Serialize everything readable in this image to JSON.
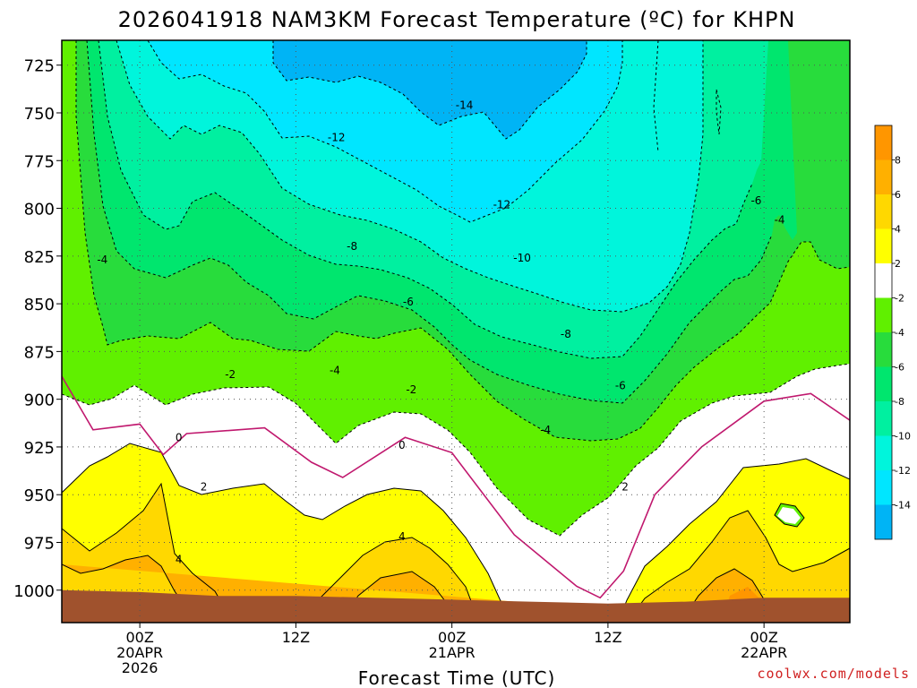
{
  "chart_data": {
    "type": "filled-contour",
    "title": "2026041918 NAM3KM Forecast Temperature (ºC) for KHPN",
    "xlabel": "Forecast Time (UTC)",
    "ylabel": "",
    "credit": "coolwx.com/models",
    "y_ticks": [
      "725",
      "750",
      "775",
      "800",
      "825",
      "850",
      "875",
      "900",
      "925",
      "950",
      "975",
      "1000"
    ],
    "ylim_hpa": [
      712,
      1017
    ],
    "xlim_hours": [
      -5,
      45.5
    ],
    "x_ticks": [
      {
        "hour": 0,
        "lines": [
          "00Z",
          "20APR",
          "2026"
        ]
      },
      {
        "hour": 10,
        "lines": [
          "12Z"
        ]
      },
      {
        "hour": 20,
        "lines": [
          "00Z",
          "21APR"
        ]
      },
      {
        "hour": 30,
        "lines": [
          "12Z"
        ]
      },
      {
        "hour": 40,
        "lines": [
          "00Z",
          "22APR"
        ]
      }
    ],
    "colorbar": [
      {
        "value": "8"
      },
      {
        "value": "6"
      },
      {
        "value": "4"
      },
      {
        "value": "2"
      },
      {
        "value": "-2"
      },
      {
        "value": "-4"
      },
      {
        "value": "-6"
      },
      {
        "value": "-8"
      },
      {
        "value": "-10"
      },
      {
        "value": "-12"
      },
      {
        "value": "-14"
      }
    ],
    "contour_labels": [
      {
        "text": "-14",
        "hour": 20.8,
        "hpa": 746
      },
      {
        "text": "-12",
        "hour": 12.6,
        "hpa": 763
      },
      {
        "text": "-12",
        "hour": 23.2,
        "hpa": 798
      },
      {
        "text": "-10",
        "hour": 24.5,
        "hpa": 826
      },
      {
        "text": "-8",
        "hour": 13.6,
        "hpa": 820
      },
      {
        "text": "-8",
        "hour": 27.3,
        "hpa": 866
      },
      {
        "text": "-6",
        "hour": 17.2,
        "hpa": 849
      },
      {
        "text": "-6",
        "hour": 30.8,
        "hpa": 893
      },
      {
        "text": "-6",
        "hour": 39.5,
        "hpa": 796
      },
      {
        "text": "-4",
        "hour": -2.4,
        "hpa": 827
      },
      {
        "text": "-4",
        "hour": 12.5,
        "hpa": 885
      },
      {
        "text": "-4",
        "hour": 26.0,
        "hpa": 916
      },
      {
        "text": "-4",
        "hour": 41.0,
        "hpa": 806
      },
      {
        "text": "-2",
        "hour": 5.8,
        "hpa": 887
      },
      {
        "text": "-2",
        "hour": 17.4,
        "hpa": 895
      },
      {
        "text": "0",
        "hour": 2.5,
        "hpa": 920
      },
      {
        "text": "0",
        "hour": 16.8,
        "hpa": 924
      },
      {
        "text": "2",
        "hour": 4.1,
        "hpa": 946
      },
      {
        "text": "2",
        "hour": 31.1,
        "hpa": 946
      },
      {
        "text": "4",
        "hour": 2.5,
        "hpa": 984
      },
      {
        "text": "4",
        "hour": 16.8,
        "hpa": 972
      }
    ],
    "temperature_bands_C": [
      "<-14",
      "-14..-12",
      "-12..-10",
      "-10..-8",
      "-8..-6",
      "-6..-4",
      "-4..-2",
      "-2..2",
      "2..4",
      "4..6",
      "6..8"
    ],
    "surface_pressure_hpa": [
      {
        "hour": -5,
        "hpa": 1000
      },
      {
        "hour": 0,
        "hpa": 1001
      },
      {
        "hour": 5,
        "hpa": 1003
      },
      {
        "hour": 10,
        "hpa": 1003
      },
      {
        "hour": 15,
        "hpa": 1004
      },
      {
        "hour": 20,
        "hpa": 1005
      },
      {
        "hour": 25,
        "hpa": 1006
      },
      {
        "hour": 30,
        "hpa": 1007
      },
      {
        "hour": 35,
        "hpa": 1006
      },
      {
        "hour": 40,
        "hpa": 1004
      },
      {
        "hour": 45.5,
        "hpa": 1004
      }
    ],
    "freezing_level_hpa": [
      {
        "hour": -5,
        "hpa": 888
      },
      {
        "hour": -3,
        "hpa": 916
      },
      {
        "hour": 0,
        "hpa": 913
      },
      {
        "hour": 1.5,
        "hpa": 929
      },
      {
        "hour": 3,
        "hpa": 918
      },
      {
        "hour": 8,
        "hpa": 915
      },
      {
        "hour": 11,
        "hpa": 933
      },
      {
        "hour": 13,
        "hpa": 941
      },
      {
        "hour": 17,
        "hpa": 920
      },
      {
        "hour": 20,
        "hpa": 928
      },
      {
        "hour": 24,
        "hpa": 971
      },
      {
        "hour": 28,
        "hpa": 998
      },
      {
        "hour": 29.5,
        "hpa": 1004
      },
      {
        "hour": 31,
        "hpa": 990
      },
      {
        "hour": 33,
        "hpa": 950
      },
      {
        "hour": 36,
        "hpa": 925
      },
      {
        "hour": 40,
        "hpa": 901
      },
      {
        "hour": 43,
        "hpa": 897
      },
      {
        "hour": 45.5,
        "hpa": 911
      }
    ]
  },
  "colors": {
    "lt_-14": "#00b4f5",
    "-14_-12": "#00e6ff",
    "-12_-10": "#00f5dc",
    "-10_-8": "#00f0a0",
    "-8_-6": "#00e66e",
    "-6_-4": "#28dc3c",
    "-4_-2": "#60f000",
    "-2_2": "#ffffff",
    "2_4": "#ffff00",
    "4_6": "#ffd800",
    "6_8": "#ffb000",
    "8_10": "#ff9600",
    "ground": "#a0522d",
    "freezing_line": "#c0186e"
  }
}
